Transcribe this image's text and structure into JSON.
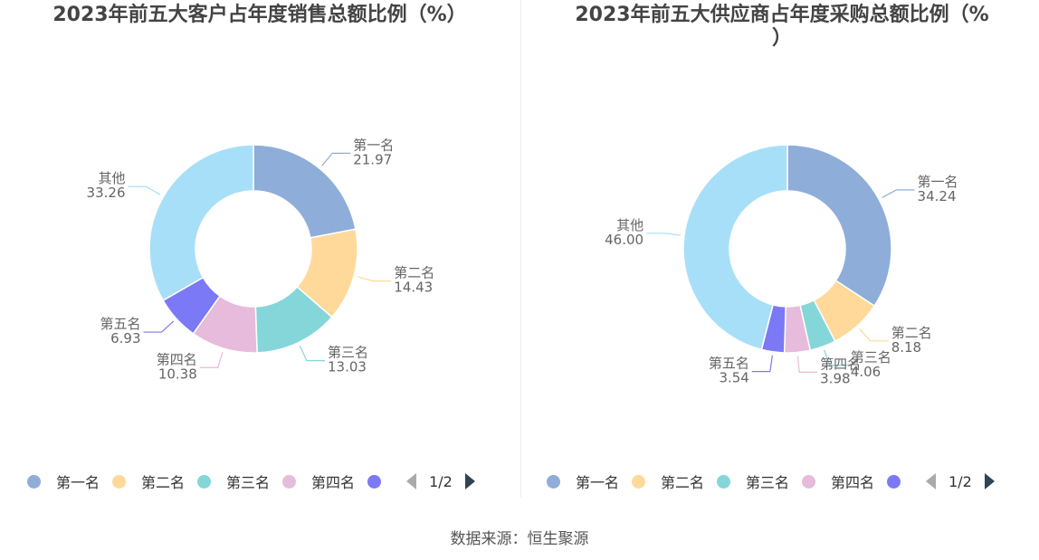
{
  "charts": [
    {
      "id": "left",
      "title": "2023年前五大客户占年度销售总额比例（%）",
      "title_lines": [
        "2023年前五大客户占年度销售总额比例（%）"
      ],
      "legend_page": "1/2",
      "chart_data": {
        "type": "pie",
        "donut": true,
        "title": "2023年前五大客户占年度销售总额比例（%）",
        "slices": [
          {
            "name": "第一名",
            "value": 21.97,
            "label": "21.97",
            "color": "#8eadd9"
          },
          {
            "name": "第二名",
            "value": 14.43,
            "label": "14.43",
            "color": "#ffd99a"
          },
          {
            "name": "第三名",
            "value": 13.03,
            "label": "13.03",
            "color": "#85d6d8"
          },
          {
            "name": "第四名",
            "value": 10.38,
            "label": "10.38",
            "color": "#e7bbdb"
          },
          {
            "name": "第五名",
            "value": 6.93,
            "label": "6.93",
            "color": "#7b79f5"
          },
          {
            "name": "其他",
            "value": 33.26,
            "label": "33.26",
            "color": "#a8dff8"
          }
        ],
        "legend_visible": [
          "第一名",
          "第二名",
          "第三名",
          "第四名",
          "第五名"
        ]
      }
    },
    {
      "id": "right",
      "title": "2023年前五大供应商占年度采购总额比例（%）",
      "title_lines": [
        "2023年前五大供应商占年度采购总额比例（%",
        "）"
      ],
      "legend_page": "1/2",
      "chart_data": {
        "type": "pie",
        "donut": true,
        "title": "2023年前五大供应商占年度采购总额比例（%）",
        "slices": [
          {
            "name": "第一名",
            "value": 34.24,
            "label": "34.24",
            "color": "#8eadd9"
          },
          {
            "name": "第二名",
            "value": 8.18,
            "label": "8.18",
            "color": "#ffd99a"
          },
          {
            "name": "第三名",
            "value": 4.06,
            "label": "4.06",
            "color": "#85d6d8"
          },
          {
            "name": "第四名",
            "value": 3.98,
            "label": "3.98",
            "color": "#e7bbdb"
          },
          {
            "name": "第五名",
            "value": 3.54,
            "label": "3.54",
            "color": "#7b79f5"
          },
          {
            "name": "其他",
            "value": 46.0,
            "label": "46.00",
            "color": "#a8dff8"
          }
        ],
        "legend_visible": [
          "第一名",
          "第二名",
          "第三名",
          "第四名",
          "第五名"
        ]
      }
    }
  ],
  "source": "数据来源：恒生聚源"
}
